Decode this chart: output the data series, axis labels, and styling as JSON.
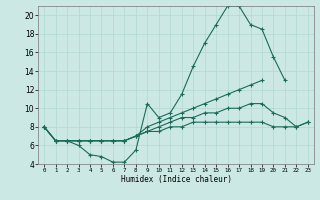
{
  "xlabel": "Humidex (Indice chaleur)",
  "bg_color": "#cce8e4",
  "grid_color": "#b0d8d0",
  "line_color": "#1a6b5a",
  "xlim": [
    -0.5,
    23.5
  ],
  "ylim": [
    4,
    21
  ],
  "xticks": [
    0,
    1,
    2,
    3,
    4,
    5,
    6,
    7,
    8,
    9,
    10,
    11,
    12,
    13,
    14,
    15,
    16,
    17,
    18,
    19,
    20,
    21,
    22,
    23
  ],
  "yticks": [
    4,
    6,
    8,
    10,
    12,
    14,
    16,
    18,
    20
  ],
  "line1_x": [
    0,
    1,
    2,
    3,
    4,
    5,
    6,
    7,
    8,
    9,
    10,
    11,
    12,
    13,
    14,
    15,
    16,
    17,
    18,
    19,
    20,
    21
  ],
  "line1_y": [
    8,
    6.5,
    6.5,
    6,
    5,
    4.8,
    4.2,
    4.2,
    5.5,
    10.5,
    9,
    9.5,
    11.5,
    14.5,
    17,
    19,
    21,
    21,
    19,
    18.5,
    15.5,
    13
  ],
  "line2_x": [
    0,
    1,
    2,
    3,
    4,
    5,
    6,
    7,
    8,
    9,
    10,
    11,
    12,
    13,
    14,
    15,
    16,
    17,
    18,
    19
  ],
  "line2_y": [
    8,
    6.5,
    6.5,
    6.5,
    6.5,
    6.5,
    6.5,
    6.5,
    7,
    8,
    8.5,
    9,
    9.5,
    10,
    10.5,
    11,
    11.5,
    12,
    12.5,
    13
  ],
  "line3_x": [
    0,
    1,
    2,
    3,
    4,
    5,
    6,
    7,
    8,
    9,
    10,
    11,
    12,
    13,
    14,
    15,
    16,
    17,
    18,
    19,
    20,
    21,
    22,
    23
  ],
  "line3_y": [
    8,
    6.5,
    6.5,
    6.5,
    6.5,
    6.5,
    6.5,
    6.5,
    7,
    7.5,
    8,
    8.5,
    9,
    9,
    9.5,
    9.5,
    10,
    10,
    10.5,
    10.5,
    9.5,
    9,
    8,
    8.5
  ],
  "line4_x": [
    0,
    1,
    2,
    3,
    4,
    5,
    6,
    7,
    8,
    9,
    10,
    11,
    12,
    13,
    14,
    15,
    16,
    17,
    18,
    19,
    20,
    21,
    22,
    23
  ],
  "line4_y": [
    8,
    6.5,
    6.5,
    6.5,
    6.5,
    6.5,
    6.5,
    6.5,
    7,
    7.5,
    7.5,
    8,
    8,
    8.5,
    8.5,
    8.5,
    8.5,
    8.5,
    8.5,
    8.5,
    8,
    8,
    8,
    8.5
  ]
}
